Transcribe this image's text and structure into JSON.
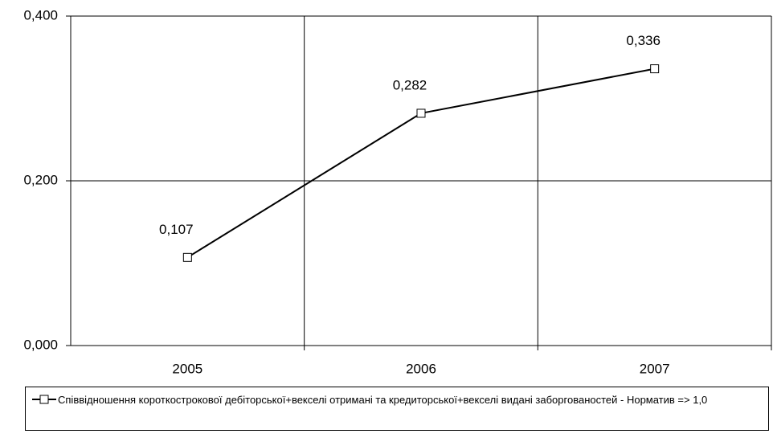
{
  "chart_data": {
    "type": "line",
    "categories": [
      "2005",
      "2006",
      "2007"
    ],
    "series": [
      {
        "name": "Співвідношення короткострокової дебіторської+векселі отримані та кредиторської+векселі видані заборгованостей - Норматив => 1,0",
        "color": "#000000",
        "values": [
          0.107,
          0.282,
          0.336
        ],
        "value_labels": [
          "0,107",
          "0,282",
          "0,336"
        ]
      }
    ],
    "ylim": [
      0,
      0.4
    ],
    "yticks": [
      {
        "value": 0,
        "label": "0,000"
      },
      {
        "value": 0.2,
        "label": "0,200"
      },
      {
        "value": 0.4,
        "label": "0,400"
      }
    ],
    "grid": true,
    "legend": "bottom"
  }
}
